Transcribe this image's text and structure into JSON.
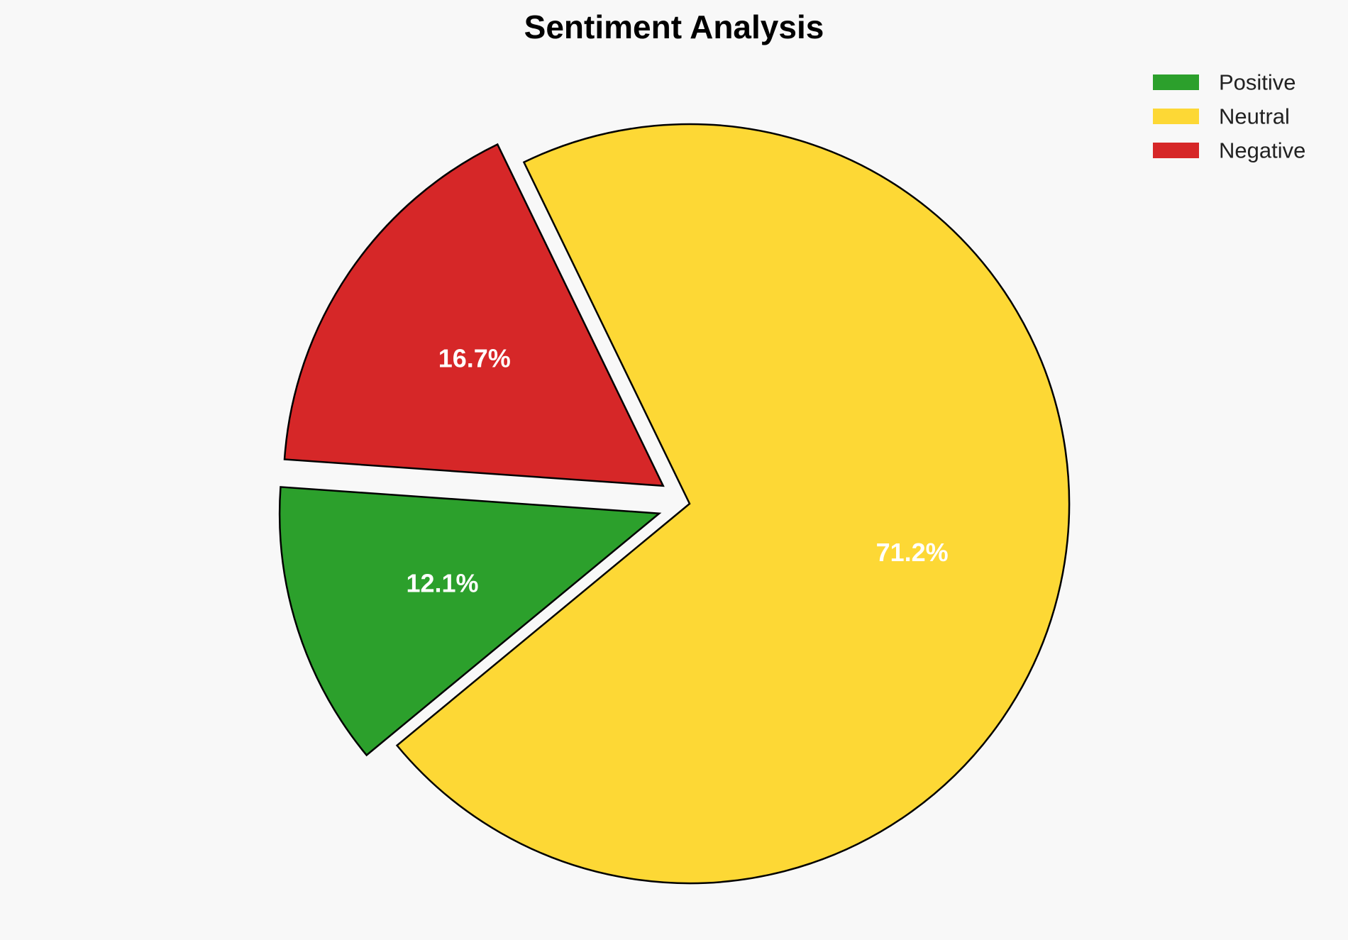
{
  "chart_data": {
    "type": "pie",
    "title": "Sentiment Analysis",
    "categories": [
      "Positive",
      "Neutral",
      "Negative"
    ],
    "values": [
      12.1,
      71.2,
      16.7
    ],
    "labels": [
      "12.1%",
      "71.2%",
      "16.7%"
    ],
    "colors": [
      "#2ca02c",
      "#fdd835",
      "#d62728"
    ],
    "exploded": [
      true,
      false,
      true
    ],
    "legend_position": "top-right",
    "start_angle_deg": 176,
    "direction": "counterclockwise"
  }
}
